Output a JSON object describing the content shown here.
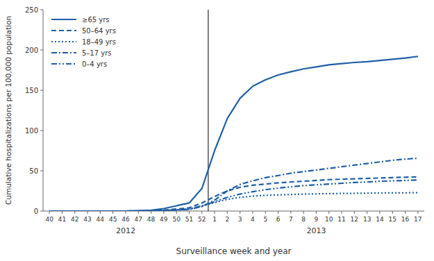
{
  "chart_data": {
    "type": "line",
    "x_label": "Surveillance week and year",
    "y_label": "Cumulative hospitalizations per 100,000 population",
    "categories": [
      "40",
      "41",
      "42",
      "43",
      "44",
      "45",
      "46",
      "47",
      "48",
      "49",
      "50",
      "51",
      "52",
      "1",
      "2",
      "3",
      "4",
      "5",
      "6",
      "7",
      "8",
      "9",
      "10",
      "11",
      "12",
      "13",
      "14",
      "15",
      "16",
      "17"
    ],
    "annotations": [
      {
        "text": "2012",
        "start": "40",
        "end": "52"
      },
      {
        "text": "2013",
        "start": "1",
        "end": "17"
      }
    ],
    "series": [
      {
        "name": "≥65 yrs",
        "color": "#1f5fa6",
        "line_style": "solid",
        "values": [
          0.0,
          0.0,
          0.0,
          0.0,
          0.0,
          0.0,
          0.0,
          0.3,
          1.0,
          3.0,
          6.5,
          10.0,
          28.0,
          75.0,
          115.0,
          140.0,
          155.0,
          163.0,
          169.0,
          173.0,
          176.5,
          179.0,
          181.5,
          183.0,
          184.5,
          185.5,
          187.0,
          188.5,
          190.0,
          192.0
        ]
      },
      {
        "name": "50–64 yrs",
        "color": "#1f5fa6",
        "line_style": "dashed",
        "values": [
          0.0,
          0.0,
          0.0,
          0.0,
          0.0,
          0.0,
          0.0,
          0.1,
          0.4,
          1.2,
          2.5,
          4.0,
          10.0,
          18.0,
          25.0,
          29.5,
          32.0,
          33.5,
          35.0,
          36.0,
          37.0,
          38.0,
          39.0,
          39.5,
          40.0,
          40.5,
          41.0,
          41.5,
          42.0,
          42.5
        ]
      },
      {
        "name": "18–49 yrs",
        "color": "#1f5fa6",
        "line_style": "dotted",
        "values": [
          0.0,
          0.0,
          0.0,
          0.0,
          0.0,
          0.0,
          0.0,
          0.1,
          0.3,
          0.8,
          1.5,
          2.5,
          6.0,
          10.5,
          14.5,
          17.0,
          18.5,
          19.5,
          20.0,
          20.5,
          21.0,
          21.3,
          21.6,
          21.8,
          22.0,
          22.2,
          22.4,
          22.5,
          22.6,
          22.8
        ]
      },
      {
        "name": "5–17 yrs",
        "color": "#1f5fa6",
        "line_style": "dashdot",
        "values": [
          0.0,
          0.0,
          0.0,
          0.0,
          0.0,
          0.0,
          0.0,
          0.05,
          0.2,
          0.5,
          1.2,
          2.0,
          5.5,
          13.5,
          25.0,
          33.0,
          37.5,
          41.5,
          44.0,
          47.0,
          49.0,
          51.0,
          53.0,
          55.0,
          57.0,
          59.0,
          61.0,
          63.0,
          64.5,
          65.5
        ]
      },
      {
        "name": "0–4 yrs",
        "color": "#1f5fa6",
        "line_style": "dashdotdot",
        "values": [
          0.0,
          0.0,
          0.0,
          0.0,
          0.0,
          0.0,
          0.0,
          0.05,
          0.2,
          0.6,
          1.5,
          2.5,
          6.5,
          11.5,
          17.0,
          21.0,
          24.0,
          26.5,
          28.5,
          30.0,
          31.5,
          32.5,
          33.5,
          34.5,
          35.5,
          36.0,
          37.0,
          37.5,
          38.0,
          38.5
        ]
      }
    ],
    "ylim": [
      0,
      250
    ],
    "yticks": [
      0,
      50,
      100,
      150,
      200,
      250
    ],
    "grid": false,
    "legend": "upper-left"
  }
}
